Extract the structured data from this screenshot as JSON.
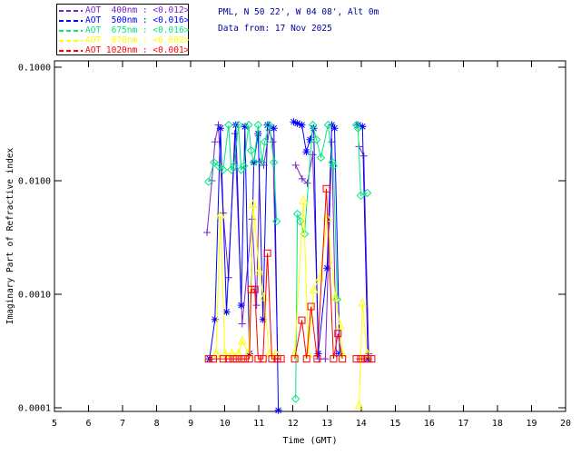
{
  "header": {
    "line1": "PML, N 50 22', W 04 08', Alt 0m",
    "line2": "Data from: 17 Nov 2025",
    "color": "#000099"
  },
  "legend": {
    "items": [
      {
        "label": "AOT  400nm : <0.012>",
        "color": "#7B22CC"
      },
      {
        "label": "AOT  500nm : <0.016>",
        "color": "#0000FF"
      },
      {
        "label": "AOT  675nm : <0.016>",
        "color": "#00E87E"
      },
      {
        "label": "AOT  870nm : <0.002>",
        "color": "#FFFF00"
      },
      {
        "label": "AOT 1020nm : <0.001>",
        "color": "#FF0000"
      }
    ]
  },
  "chart_data": {
    "type": "line",
    "title": "",
    "xlabel": "Time (GMT)",
    "ylabel": "Imaginary Part of Refractive index",
    "xlim": [
      5,
      20
    ],
    "ylim": [
      0.0001,
      0.1
    ],
    "yscale": "log",
    "grid": false,
    "legend_position": "top-left",
    "xticks": [
      5,
      6,
      7,
      8,
      9,
      10,
      11,
      12,
      13,
      14,
      15,
      16,
      17,
      18,
      19,
      20
    ],
    "yticks": [
      0.1,
      0.01,
      0.001,
      0.0001
    ],
    "ytick_labels": [
      "0.1000",
      "0.0100",
      "0.0010",
      "0.0001"
    ],
    "axis_color": "#000000",
    "series": [
      {
        "name": "AOT 400nm",
        "color": "#7B22CC",
        "marker": "plus",
        "segments": [
          [
            [
              9.48,
              0.0035
            ],
            [
              9.62,
              0.01
            ],
            [
              9.71,
              0.022
            ],
            [
              9.81,
              0.031
            ],
            [
              9.95,
              0.0052
            ],
            [
              10.11,
              0.0014
            ],
            [
              10.29,
              0.026
            ],
            [
              10.51,
              0.00055
            ],
            [
              10.8,
              0.0046
            ],
            [
              10.93,
              0.0008
            ],
            [
              11.02,
              0.0148
            ],
            [
              11.14,
              0.0137
            ],
            [
              11.31,
              0.028
            ],
            [
              11.41,
              0.022
            ],
            [
              11.55,
              0.00027
            ]
          ],
          [
            [
              12.08,
              0.0137
            ],
            [
              12.27,
              0.0104
            ],
            [
              12.42,
              0.0095
            ],
            [
              12.58,
              0.017
            ],
            [
              12.76,
              0.00027
            ],
            [
              12.95,
              0.00027
            ],
            [
              13.14,
              0.022
            ],
            [
              13.27,
              0.0003
            ]
          ],
          [
            [
              13.94,
              0.02
            ],
            [
              14.08,
              0.0165
            ],
            [
              14.22,
              0.0003
            ]
          ]
        ]
      },
      {
        "name": "AOT 500nm",
        "color": "#0000FF",
        "marker": "asterisk",
        "segments": [
          [
            [
              9.55,
              0.00027
            ],
            [
              9.71,
              0.0006
            ],
            [
              9.87,
              0.029
            ],
            [
              10.05,
              0.0007
            ],
            [
              10.32,
              0.031
            ],
            [
              10.48,
              0.0008
            ],
            [
              10.59,
              0.03
            ],
            [
              10.72,
              0.0003
            ],
            [
              10.85,
              0.0145
            ],
            [
              10.98,
              0.026
            ],
            [
              11.12,
              0.0006
            ],
            [
              11.25,
              0.031
            ],
            [
              11.44,
              0.029
            ],
            [
              11.57,
              9.5e-05
            ]
          ],
          [
            [
              12.02,
              0.033
            ],
            [
              12.13,
              0.032
            ],
            [
              12.26,
              0.031
            ],
            [
              12.39,
              0.018
            ],
            [
              12.5,
              0.023
            ],
            [
              12.61,
              0.029
            ],
            [
              12.74,
              0.0003
            ],
            [
              13.0,
              0.0017
            ],
            [
              13.14,
              0.031
            ],
            [
              13.22,
              0.029
            ],
            [
              13.37,
              0.0003
            ]
          ],
          [
            [
              13.91,
              0.031
            ],
            [
              14.04,
              0.03
            ],
            [
              14.2,
              0.00027
            ]
          ]
        ]
      },
      {
        "name": "AOT 675nm",
        "color": "#00E87E",
        "marker": "diamond",
        "segments": [
          [
            [
              9.52,
              0.0098
            ],
            [
              9.68,
              0.0145
            ],
            [
              9.81,
              0.0135
            ],
            [
              9.95,
              0.0125
            ],
            [
              10.11,
              0.031
            ],
            [
              10.19,
              0.0125
            ],
            [
              10.27,
              0.0135
            ],
            [
              10.4,
              0.031
            ],
            [
              10.48,
              0.0125
            ],
            [
              10.56,
              0.0135
            ],
            [
              10.7,
              0.031
            ],
            [
              10.77,
              0.0185
            ],
            [
              10.85,
              0.0145
            ],
            [
              10.98,
              0.031
            ],
            [
              11.09,
              0.0145
            ],
            [
              11.17,
              0.022
            ],
            [
              11.31,
              0.031
            ],
            [
              11.44,
              0.0145
            ],
            [
              11.52,
              0.0044
            ]
          ],
          [
            [
              12.08,
              0.00012
            ],
            [
              12.13,
              0.0051
            ],
            [
              12.21,
              0.0044
            ],
            [
              12.34,
              0.0034
            ],
            [
              12.58,
              0.031
            ],
            [
              12.69,
              0.023
            ],
            [
              12.82,
              0.016
            ],
            [
              13.03,
              0.031
            ],
            [
              13.16,
              0.0145
            ],
            [
              13.19,
              0.0135
            ],
            [
              13.3,
              0.0009
            ]
          ],
          [
            [
              13.86,
              0.031
            ],
            [
              13.91,
              0.029
            ],
            [
              13.99,
              0.0074
            ],
            [
              14.18,
              0.0078
            ]
          ]
        ]
      },
      {
        "name": "AOT 870nm",
        "color": "#FFFF00",
        "marker": "triangle",
        "segments": [
          [
            [
              9.74,
              0.0003
            ],
            [
              9.87,
              0.005
            ],
            [
              10.0,
              0.0003
            ],
            [
              10.21,
              0.0003
            ],
            [
              10.4,
              0.0003
            ],
            [
              10.51,
              0.00039
            ],
            [
              10.7,
              0.0003
            ],
            [
              10.83,
              0.0062
            ],
            [
              11.01,
              0.0016
            ],
            [
              11.14,
              0.00094
            ],
            [
              11.31,
              0.0003
            ],
            [
              11.5,
              0.0003
            ]
          ],
          [
            [
              12.05,
              0.0003
            ],
            [
              12.31,
              0.0067
            ],
            [
              12.45,
              0.0003
            ],
            [
              12.61,
              0.0011
            ],
            [
              12.79,
              0.0014
            ],
            [
              13.01,
              0.0047
            ],
            [
              13.24,
              0.00094
            ],
            [
              13.38,
              0.00053
            ],
            [
              13.45,
              0.0003
            ]
          ],
          [
            [
              13.94,
              0.000105
            ],
            [
              14.04,
              0.00084
            ],
            [
              14.18,
              0.0003
            ]
          ]
        ]
      },
      {
        "name": "AOT 1020nm",
        "color": "#FF0000",
        "marker": "square",
        "segments": [
          [
            [
              9.52,
              0.00027
            ],
            [
              9.66,
              0.00027
            ],
            [
              9.95,
              0.00027
            ],
            [
              10.11,
              0.00027
            ],
            [
              10.24,
              0.00027
            ],
            [
              10.35,
              0.00027
            ],
            [
              10.48,
              0.00027
            ],
            [
              10.59,
              0.00027
            ],
            [
              10.72,
              0.00027
            ],
            [
              10.77,
              0.0011
            ],
            [
              10.88,
              0.0011
            ],
            [
              10.98,
              0.00027
            ],
            [
              11.12,
              0.00027
            ],
            [
              11.25,
              0.0023
            ],
            [
              11.38,
              0.00027
            ],
            [
              11.54,
              0.00027
            ],
            [
              11.65,
              0.00027
            ]
          ],
          [
            [
              12.05,
              0.00027
            ],
            [
              12.26,
              0.00059
            ],
            [
              12.4,
              0.00027
            ],
            [
              12.53,
              0.00078
            ],
            [
              12.71,
              0.00027
            ],
            [
              12.98,
              0.0085
            ],
            [
              13.19,
              0.00027
            ],
            [
              13.32,
              0.00045
            ],
            [
              13.45,
              0.00027
            ]
          ],
          [
            [
              13.86,
              0.00027
            ],
            [
              13.99,
              0.00027
            ],
            [
              14.12,
              0.00027
            ],
            [
              14.2,
              0.00027
            ],
            [
              14.31,
              0.00027
            ]
          ]
        ]
      }
    ]
  }
}
